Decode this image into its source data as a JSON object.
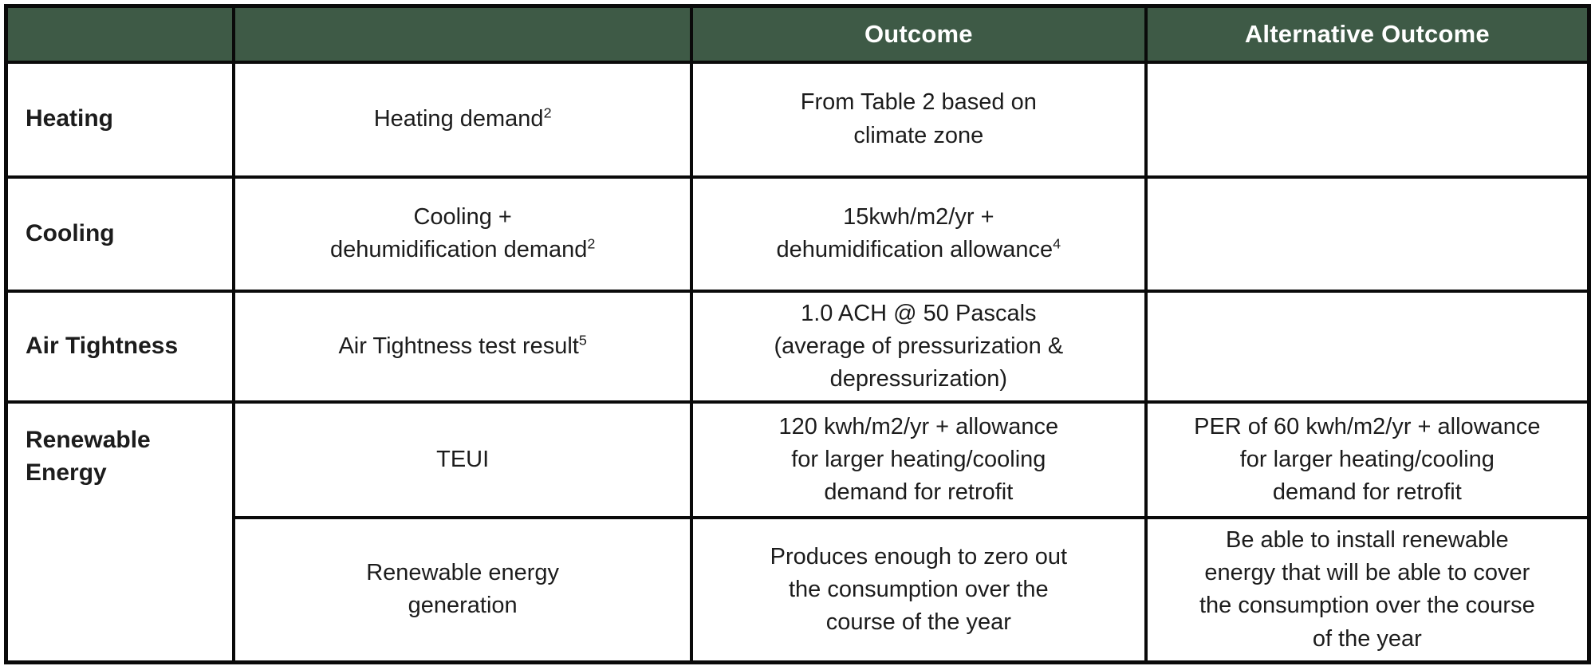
{
  "header": {
    "category_label": "",
    "metric_label": "",
    "outcome_label": "Outcome",
    "alt_outcome_label": "Alternative Outcome",
    "bg_color": "#3e5a46",
    "text_color": "#ffffff"
  },
  "rows": {
    "heating": {
      "category": "Heating",
      "criteria": {
        "text": "Heating demand",
        "sup": "2"
      },
      "outcome": {
        "text": "From Table 2 based on\nclimate zone",
        "sup": ""
      },
      "alternative": {
        "text": "",
        "sup": ""
      }
    },
    "cooling": {
      "category": "Cooling",
      "criteria": {
        "text": "Cooling +\ndehumidification demand",
        "sup": "2"
      },
      "outcome": {
        "text": "15kwh/m2/yr +\ndehumidification allowance",
        "sup": "4"
      },
      "alternative": {
        "text": "",
        "sup": ""
      }
    },
    "airtightness": {
      "category": "Air Tightness",
      "criteria": {
        "text": "Air Tightness test result",
        "sup": "5"
      },
      "outcome": {
        "text": "1.0 ACH @ 50 Pascals\n(average of pressurization &\ndepressurization)",
        "sup": ""
      },
      "alternative": {
        "text": "",
        "sup": ""
      }
    },
    "teui": {
      "category": "Renewable\nEnergy",
      "criteria": {
        "text": "TEUI",
        "sup": ""
      },
      "outcome": {
        "text": "120 kwh/m2/yr + allowance\nfor larger heating/cooling\ndemand for retrofit",
        "sup": ""
      },
      "alternative": {
        "text": "PER of 60 kwh/m2/yr + allowance\nfor larger heating/cooling\ndemand for retrofit",
        "sup": ""
      }
    },
    "generation": {
      "criteria": {
        "text": "Renewable energy\ngeneration",
        "sup": ""
      },
      "outcome": {
        "text": "Produces enough to zero out\nthe consumption over the\ncourse of the year",
        "sup": ""
      },
      "alternative": {
        "text": "Be able to install renewable\nenergy that will be able to cover\nthe consumption over the course\nof the year",
        "sup": ""
      }
    }
  },
  "colors": {
    "border": "#0a0a0a",
    "body_text": "#1c1c1c",
    "header_bg": "#3e5a46",
    "header_text": "#ffffff"
  }
}
